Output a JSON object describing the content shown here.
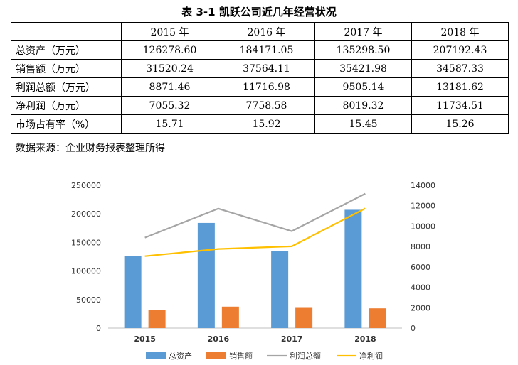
{
  "title": "表 3-1 凯跃公司近几年经营状况",
  "table": {
    "corner": "",
    "years": [
      "2015 年",
      "2016 年",
      "2017 年",
      "2018 年"
    ],
    "rows": [
      {
        "label": "总资产（万元）",
        "values": [
          "126278.60",
          "184171.05",
          "135298.50",
          "207192.43"
        ]
      },
      {
        "label": "销售额（万元）",
        "values": [
          "31520.24",
          "37564.11",
          "35421.98",
          "34587.33"
        ]
      },
      {
        "label": "利润总额（万元）",
        "values": [
          "8871.46",
          "11716.98",
          "9505.14",
          "13181.62"
        ]
      },
      {
        "label": "净利润（万元）",
        "values": [
          "7055.32",
          "7758.58",
          "8019.32",
          "11734.51"
        ]
      },
      {
        "label": "市场占有率（%）",
        "values": [
          "15.71",
          "15.92",
          "15.45",
          "15.26"
        ]
      }
    ]
  },
  "source": "数据来源：企业财务报表整理所得",
  "chart_data": {
    "type": "bar",
    "categories": [
      "2015",
      "2016",
      "2017",
      "2018"
    ],
    "series": [
      {
        "name": "总资产",
        "type": "bar",
        "axis": "left",
        "color": "#5B9BD5",
        "values": [
          126278.6,
          184171.05,
          135298.5,
          207192.43
        ]
      },
      {
        "name": "销售额",
        "type": "bar",
        "axis": "left",
        "color": "#ED7D31",
        "values": [
          31520.24,
          37564.11,
          35421.98,
          34587.33
        ]
      },
      {
        "name": "利润总额",
        "type": "line",
        "axis": "right",
        "color": "#A5A5A5",
        "values": [
          8871.46,
          11716.98,
          9505.14,
          13181.62
        ]
      },
      {
        "name": "净利润",
        "type": "line",
        "axis": "right",
        "color": "#FFC000",
        "values": [
          7055.32,
          7758.58,
          8019.32,
          11734.51
        ]
      }
    ],
    "y_left": {
      "min": 0,
      "max": 250000,
      "ticks": [
        "0",
        "50000",
        "100000",
        "150000",
        "200000",
        "250000"
      ]
    },
    "y_right": {
      "min": 0,
      "max": 14000,
      "ticks": [
        "0",
        "2000",
        "4000",
        "6000",
        "8000",
        "10000",
        "12000",
        "14000"
      ]
    },
    "grid": false,
    "legend": "bottom"
  }
}
